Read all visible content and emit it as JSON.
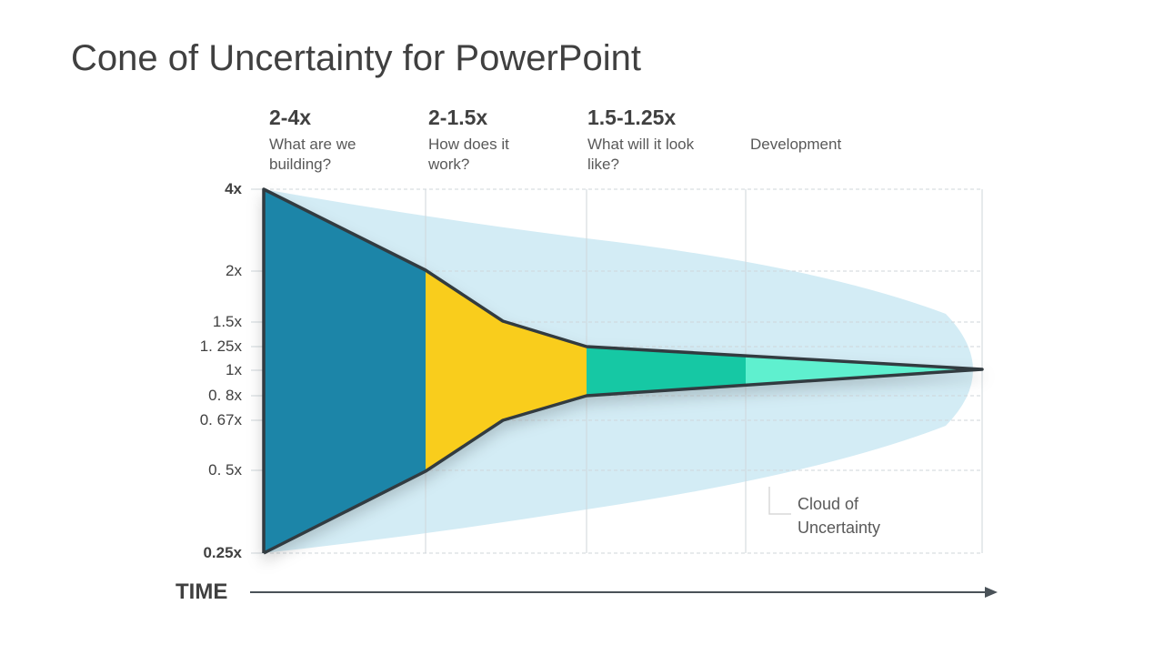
{
  "title": "Cone of Uncertainty for PowerPoint",
  "phases": [
    {
      "headline": "2-4x",
      "description": "What are we building?"
    },
    {
      "headline": "2-1.5x",
      "description": "How does it work?"
    },
    {
      "headline": "1.5-1.25x",
      "description": "What will it look like?"
    },
    {
      "description": "Development"
    }
  ],
  "y_labels": [
    "4x",
    "2x",
    "1.5x",
    "1. 25x",
    "1x",
    "0. 8x",
    "0. 67x",
    "0. 5x",
    "0.25x"
  ],
  "time_label": "TIME",
  "cloud_label": "Cloud of Uncertainty"
}
